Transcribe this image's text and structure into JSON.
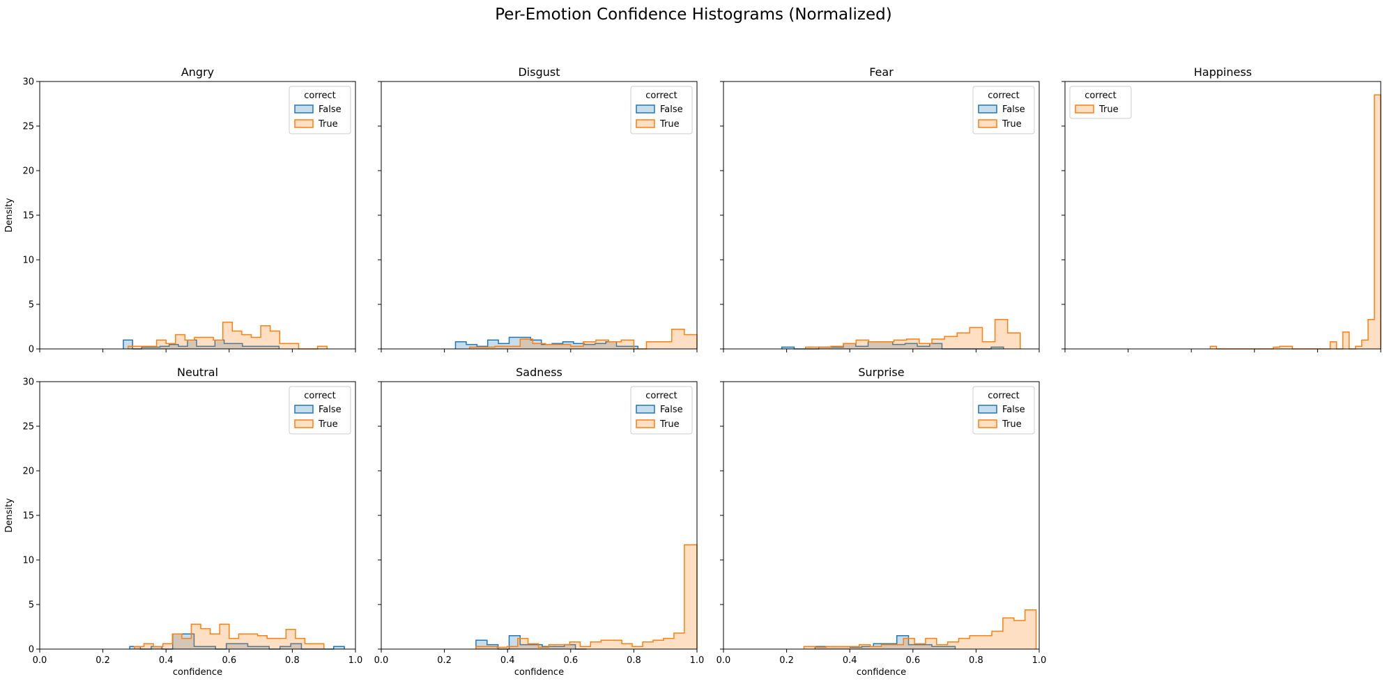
{
  "figure": {
    "title": "Per-Emotion Confidence Histograms (Normalized)"
  },
  "colors": {
    "false": "#1f77b4",
    "true": "#ff7f0e"
  },
  "axes": {
    "xlabel": "confidence",
    "ylabel": "Density",
    "xlim": [
      0.0,
      1.0
    ],
    "ylim": [
      0,
      30
    ],
    "xticks": [
      "0.0",
      "0.2",
      "0.4",
      "0.6",
      "0.8",
      "1.0"
    ],
    "yticks": [
      "0",
      "5",
      "10",
      "15",
      "20",
      "25",
      "30"
    ]
  },
  "legend": {
    "title": "correct",
    "labels": {
      "false": "False",
      "true": "True"
    }
  },
  "chart_data": [
    {
      "type": "histogram-step",
      "title": "Angry",
      "legend_position": "top-right",
      "series": [
        {
          "name": "False",
          "edges": [
            0.265,
            0.294,
            0.323,
            0.352,
            0.381,
            0.41,
            0.439,
            0.468,
            0.497,
            0.526,
            0.555,
            0.584,
            0.613,
            0.642,
            0.671,
            0.7,
            0.729,
            0.758
          ],
          "values": [
            1.0,
            0,
            0.2,
            0.2,
            0.3,
            0.5,
            0.3,
            1.0,
            0.3,
            0.3,
            1.0,
            0.6,
            0.6,
            0.3,
            0.3,
            0.3,
            0.3
          ]
        },
        {
          "name": "True",
          "edges": [
            0.28,
            0.31,
            0.34,
            0.37,
            0.4,
            0.43,
            0.46,
            0.49,
            0.52,
            0.55,
            0.58,
            0.61,
            0.64,
            0.67,
            0.7,
            0.73,
            0.76,
            0.79,
            0.82,
            0.85,
            0.88,
            0.91
          ],
          "values": [
            0.3,
            0.3,
            0.3,
            1.0,
            0.6,
            1.6,
            1.0,
            1.3,
            1.3,
            1.0,
            3.0,
            2.0,
            1.6,
            1.3,
            2.6,
            2.0,
            0.6,
            0.6,
            0,
            0,
            0.3
          ]
        }
      ]
    },
    {
      "type": "histogram-step",
      "title": "Disgust",
      "legend_position": "top-right",
      "series": [
        {
          "name": "False",
          "edges": [
            0.235,
            0.269,
            0.303,
            0.337,
            0.371,
            0.405,
            0.439,
            0.473,
            0.507,
            0.541,
            0.575,
            0.609,
            0.643,
            0.677,
            0.711,
            0.745,
            0.779,
            0.813
          ],
          "values": [
            0.8,
            0.5,
            0.3,
            1.0,
            0.6,
            1.3,
            1.3,
            1.0,
            0.5,
            0.6,
            0.8,
            0.6,
            0.5,
            0.6,
            0.8,
            0.3,
            0.3
          ]
        },
        {
          "name": "True",
          "edges": [
            0.28,
            0.32,
            0.36,
            0.4,
            0.44,
            0.48,
            0.52,
            0.56,
            0.6,
            0.64,
            0.68,
            0.72,
            0.76,
            0.8,
            0.84,
            0.88,
            0.92,
            0.96,
            1.0
          ],
          "values": [
            0.2,
            0.2,
            0.3,
            0.3,
            1.1,
            0.6,
            0.5,
            0.5,
            0.3,
            0.8,
            1.0,
            0.8,
            1.0,
            0,
            0.8,
            0.8,
            2.2,
            1.6
          ]
        }
      ]
    },
    {
      "type": "histogram-step",
      "title": "Fear",
      "legend_position": "top-right",
      "series": [
        {
          "name": "False",
          "edges": [
            0.185,
            0.224,
            0.263,
            0.302,
            0.341,
            0.38,
            0.419,
            0.458,
            0.497,
            0.536,
            0.575,
            0.614,
            0.653,
            0.692,
            0.731,
            0.77,
            0.809,
            0.848,
            0.887
          ],
          "values": [
            0.2,
            0,
            0,
            0.2,
            0.2,
            0.6,
            0.3,
            0.8,
            0.8,
            0.5,
            0.6,
            0.3,
            0.6,
            0,
            0,
            0,
            0,
            0.2
          ]
        },
        {
          "name": "True",
          "edges": [
            0.26,
            0.3,
            0.34,
            0.38,
            0.42,
            0.46,
            0.5,
            0.54,
            0.58,
            0.62,
            0.66,
            0.7,
            0.74,
            0.78,
            0.82,
            0.86,
            0.9,
            0.94
          ],
          "values": [
            0.2,
            0.2,
            0.3,
            0.6,
            1.0,
            0.8,
            0.8,
            1.0,
            1.1,
            0.6,
            1.1,
            1.4,
            1.8,
            2.4,
            0.8,
            3.3,
            1.8
          ]
        }
      ]
    },
    {
      "type": "histogram-step",
      "title": "Happiness",
      "legend_position": "top-left",
      "series": [
        {
          "name": "True",
          "edges": [
            0.46,
            0.48,
            0.5,
            0.52,
            0.54,
            0.56,
            0.58,
            0.6,
            0.62,
            0.64,
            0.66,
            0.68,
            0.7,
            0.72,
            0.74,
            0.76,
            0.78,
            0.8,
            0.82,
            0.84,
            0.86,
            0.88,
            0.9,
            0.92,
            0.94,
            0.96,
            0.98,
            1.0
          ],
          "values": [
            0.3,
            0,
            0,
            0,
            0,
            0,
            0,
            0,
            0,
            0,
            0.2,
            0.3,
            0.3,
            0,
            0,
            0,
            0,
            0,
            0,
            0.8,
            0,
            1.9,
            0,
            0.3,
            1.0,
            3.3,
            28.5
          ]
        }
      ]
    },
    {
      "type": "histogram-step",
      "title": "Neutral",
      "legend_position": "top-right",
      "series": [
        {
          "name": "False",
          "edges": [
            0.285,
            0.319,
            0.353,
            0.387,
            0.421,
            0.455,
            0.489,
            0.523,
            0.557,
            0.591,
            0.625,
            0.659,
            0.693,
            0.727,
            0.761,
            0.795,
            0.829,
            0.863,
            0.897,
            0.931,
            0.965
          ],
          "values": [
            0.3,
            0,
            0.3,
            0,
            1.7,
            1.7,
            0.3,
            0.3,
            0,
            0.6,
            0.6,
            0.3,
            0.3,
            0,
            0.3,
            0.6,
            0,
            0,
            0,
            0.3
          ]
        },
        {
          "name": "True",
          "edges": [
            0.3,
            0.33,
            0.36,
            0.39,
            0.42,
            0.45,
            0.48,
            0.51,
            0.54,
            0.57,
            0.6,
            0.63,
            0.66,
            0.69,
            0.72,
            0.75,
            0.78,
            0.81,
            0.84,
            0.87,
            0.9
          ],
          "values": [
            0.3,
            0.6,
            0.3,
            0.6,
            1.7,
            1.2,
            2.8,
            2.3,
            1.7,
            2.8,
            1.2,
            1.7,
            1.7,
            1.5,
            1.2,
            1.2,
            2.2,
            1.2,
            0.6,
            0.6
          ]
        }
      ]
    },
    {
      "type": "histogram-step",
      "title": "Sadness",
      "legend_position": "top-right",
      "series": [
        {
          "name": "False",
          "edges": [
            0.3,
            0.335,
            0.37,
            0.405,
            0.44,
            0.475,
            0.51,
            0.545,
            0.58,
            0.615,
            0.65
          ],
          "values": [
            1.0,
            0.5,
            0,
            1.5,
            0.5,
            0.5,
            0.3,
            0.3,
            0.5,
            0
          ]
        },
        {
          "name": "True",
          "edges": [
            0.3,
            0.333,
            0.366,
            0.399,
            0.432,
            0.465,
            0.498,
            0.531,
            0.564,
            0.597,
            0.63,
            0.663,
            0.696,
            0.729,
            0.762,
            0.795,
            0.828,
            0.861,
            0.894,
            0.927,
            0.96,
            1.0
          ],
          "values": [
            0.3,
            0.3,
            0.2,
            0.3,
            1.2,
            0.6,
            0.2,
            0.5,
            0.5,
            0.8,
            0.3,
            0.8,
            1.0,
            1.0,
            0.6,
            0.3,
            0.8,
            1.0,
            1.2,
            1.8,
            11.7
          ]
        }
      ]
    },
    {
      "type": "histogram-step",
      "title": "Surprise",
      "legend_position": "top-right",
      "series": [
        {
          "name": "False",
          "edges": [
            0.29,
            0.327,
            0.364,
            0.401,
            0.438,
            0.475,
            0.512,
            0.549,
            0.586,
            0.623,
            0.66,
            0.697,
            0.734
          ],
          "values": [
            0.3,
            0.3,
            0.3,
            0.2,
            0.3,
            0.6,
            0.6,
            1.5,
            0.5,
            0.5,
            0.3,
            0.3
          ]
        },
        {
          "name": "True",
          "edges": [
            0.255,
            0.29,
            0.325,
            0.36,
            0.395,
            0.43,
            0.465,
            0.5,
            0.535,
            0.57,
            0.605,
            0.64,
            0.675,
            0.71,
            0.745,
            0.78,
            0.815,
            0.85,
            0.885,
            0.92,
            0.955,
            0.99
          ],
          "values": [
            0.3,
            0.2,
            0.3,
            0.3,
            0.3,
            0.5,
            0.3,
            0.5,
            0.5,
            1.2,
            0.6,
            1.2,
            0.5,
            0.8,
            1.2,
            1.5,
            1.5,
            2.0,
            3.5,
            3.2,
            4.4
          ]
        }
      ]
    }
  ]
}
